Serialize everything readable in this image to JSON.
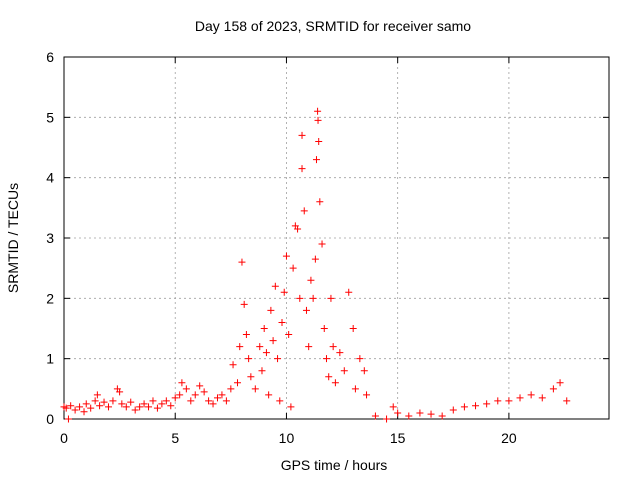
{
  "chart_data": {
    "type": "scatter",
    "title": "Day 158 of 2023, SRMTID for receiver samo",
    "xlabel": "GPS time / hours",
    "ylabel": "SRMTID / TECUs",
    "xlim": [
      0,
      24.5
    ],
    "ylim": [
      0,
      6
    ],
    "xticks": [
      0,
      5,
      10,
      15,
      20
    ],
    "yticks": [
      0,
      1,
      2,
      3,
      4,
      5,
      6
    ],
    "xtick_labels": [
      "0",
      "5",
      "10",
      "15",
      "20"
    ],
    "ytick_labels": [
      "0",
      "1",
      "2",
      "3",
      "4",
      "5",
      "6"
    ],
    "grid": true,
    "marker": "+",
    "color": "#ff0000",
    "series": [
      {
        "name": "SRMTID",
        "points": [
          [
            0.0,
            0.2
          ],
          [
            0.1,
            0.18
          ],
          [
            0.2,
            0.0
          ],
          [
            0.3,
            0.22
          ],
          [
            0.5,
            0.15
          ],
          [
            0.7,
            0.2
          ],
          [
            0.9,
            0.12
          ],
          [
            1.0,
            0.25
          ],
          [
            1.2,
            0.18
          ],
          [
            1.4,
            0.3
          ],
          [
            1.5,
            0.4
          ],
          [
            1.6,
            0.22
          ],
          [
            1.8,
            0.28
          ],
          [
            2.0,
            0.2
          ],
          [
            2.2,
            0.3
          ],
          [
            2.4,
            0.5
          ],
          [
            2.5,
            0.45
          ],
          [
            2.6,
            0.25
          ],
          [
            2.8,
            0.2
          ],
          [
            3.0,
            0.28
          ],
          [
            3.2,
            0.15
          ],
          [
            3.4,
            0.2
          ],
          [
            3.6,
            0.25
          ],
          [
            3.8,
            0.2
          ],
          [
            4.0,
            0.3
          ],
          [
            4.2,
            0.18
          ],
          [
            4.4,
            0.25
          ],
          [
            4.6,
            0.3
          ],
          [
            4.8,
            0.22
          ],
          [
            5.0,
            0.35
          ],
          [
            5.2,
            0.4
          ],
          [
            5.3,
            0.6
          ],
          [
            5.5,
            0.5
          ],
          [
            5.7,
            0.3
          ],
          [
            5.9,
            0.4
          ],
          [
            6.1,
            0.55
          ],
          [
            6.3,
            0.45
          ],
          [
            6.5,
            0.3
          ],
          [
            6.7,
            0.25
          ],
          [
            6.9,
            0.35
          ],
          [
            7.1,
            0.4
          ],
          [
            7.3,
            0.3
          ],
          [
            7.5,
            0.5
          ],
          [
            7.6,
            0.9
          ],
          [
            7.8,
            0.6
          ],
          [
            7.9,
            1.2
          ],
          [
            8.0,
            2.6
          ],
          [
            8.1,
            1.9
          ],
          [
            8.2,
            1.4
          ],
          [
            8.3,
            1.0
          ],
          [
            8.4,
            0.7
          ],
          [
            8.6,
            0.5
          ],
          [
            8.8,
            1.2
          ],
          [
            8.9,
            0.8
          ],
          [
            9.0,
            1.5
          ],
          [
            9.1,
            1.1
          ],
          [
            9.2,
            0.4
          ],
          [
            9.3,
            1.8
          ],
          [
            9.4,
            1.3
          ],
          [
            9.5,
            2.2
          ],
          [
            9.6,
            1.0
          ],
          [
            9.7,
            0.3
          ],
          [
            9.8,
            1.6
          ],
          [
            9.9,
            2.1
          ],
          [
            10.0,
            2.7
          ],
          [
            10.1,
            1.4
          ],
          [
            10.2,
            0.2
          ],
          [
            10.3,
            2.5
          ],
          [
            10.4,
            3.2
          ],
          [
            10.5,
            3.15
          ],
          [
            10.6,
            2.0
          ],
          [
            10.7,
            4.15
          ],
          [
            10.7,
            4.7
          ],
          [
            10.8,
            3.45
          ],
          [
            10.9,
            1.8
          ],
          [
            11.0,
            1.2
          ],
          [
            11.1,
            2.3
          ],
          [
            11.2,
            2.0
          ],
          [
            11.3,
            2.65
          ],
          [
            11.35,
            4.3
          ],
          [
            11.4,
            5.1
          ],
          [
            11.42,
            4.95
          ],
          [
            11.45,
            4.6
          ],
          [
            11.5,
            3.6
          ],
          [
            11.6,
            2.9
          ],
          [
            11.7,
            1.5
          ],
          [
            11.8,
            1.0
          ],
          [
            11.9,
            0.7
          ],
          [
            12.0,
            2.0
          ],
          [
            12.1,
            1.2
          ],
          [
            12.2,
            0.6
          ],
          [
            12.4,
            1.1
          ],
          [
            12.6,
            0.8
          ],
          [
            12.8,
            2.1
          ],
          [
            13.0,
            1.5
          ],
          [
            13.1,
            0.5
          ],
          [
            13.3,
            1.0
          ],
          [
            13.5,
            0.8
          ],
          [
            13.6,
            0.4
          ],
          [
            14.0,
            0.05
          ],
          [
            14.5,
            0.0
          ],
          [
            14.8,
            0.2
          ],
          [
            15.0,
            0.1
          ],
          [
            15.5,
            0.05
          ],
          [
            16.0,
            0.1
          ],
          [
            16.5,
            0.08
          ],
          [
            17.0,
            0.05
          ],
          [
            17.5,
            0.15
          ],
          [
            18.0,
            0.2
          ],
          [
            18.5,
            0.22
          ],
          [
            19.0,
            0.25
          ],
          [
            19.5,
            0.3
          ],
          [
            20.0,
            0.3
          ],
          [
            20.5,
            0.35
          ],
          [
            21.0,
            0.4
          ],
          [
            21.5,
            0.35
          ],
          [
            22.0,
            0.5
          ],
          [
            22.3,
            0.6
          ],
          [
            22.6,
            0.3
          ]
        ]
      }
    ]
  }
}
